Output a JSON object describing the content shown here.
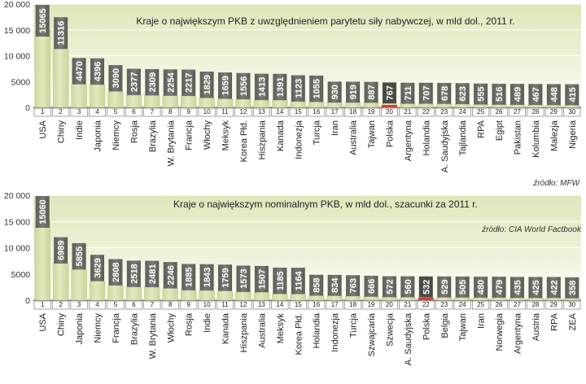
{
  "chart_data": [
    {
      "type": "bar",
      "title": "Kraje o największym PKB z uwzględnieniem parytetu siły nabywczej, w mld dol., 2011 r.",
      "source": "źródło: MFW",
      "ylim": [
        0,
        20000
      ],
      "yticks": [
        "0",
        "5000",
        "10 000",
        "15 000",
        "20 000"
      ],
      "ytick_values": [
        0,
        5000,
        10000,
        15000,
        20000
      ],
      "ranks": [
        "1",
        "2",
        "3",
        "4",
        "5",
        "6",
        "7",
        "8",
        "9",
        "10",
        "11",
        "12",
        "13",
        "14",
        "15",
        "16",
        "17",
        "18",
        "19",
        "20",
        "21",
        "22",
        "23",
        "24",
        "25",
        "26",
        "27",
        "28",
        "29",
        "30"
      ],
      "categories": [
        "USA",
        "Chiny",
        "Indie",
        "Japonia",
        "Niemcy",
        "Rosja",
        "Brazylia",
        "W. Brytania",
        "Francja",
        "Włochy",
        "Meksyk",
        "Korea Płd.",
        "Hiszpania",
        "Kanada",
        "Indonezja",
        "Turcja",
        "Iran",
        "Australia",
        "Tajwan",
        "Polska",
        "Argentyna",
        "Holandia",
        "A. Saudyjska",
        "Tajlandia",
        "RPA",
        "Egipt",
        "Pakistan",
        "Kolumbia",
        "Malezja",
        "Nigeria"
      ],
      "values": [
        15065,
        11316,
        4470,
        4396,
        3090,
        2377,
        2309,
        2254,
        2217,
        1829,
        1659,
        1556,
        1413,
        1391,
        1123,
        1055,
        930,
        919,
        887,
        767,
        711,
        707,
        678,
        623,
        555,
        516,
        489,
        467,
        448,
        415
      ],
      "highlight_index": 19,
      "colors": {
        "bar": "#dfe4b4",
        "bar_top": "#cdd498",
        "label_box": "#6a6a66",
        "highlight": "#d93a3a",
        "background_top": "#dfe6bb",
        "background_bottom": "#fbfcf3"
      }
    },
    {
      "type": "bar",
      "title": "Kraje o największym nominalnym PKB, w mld dol., szacunki za 2011 r.",
      "source": "źródło: CIA World Factbook",
      "ylim": [
        0,
        20000
      ],
      "yticks": [
        "0",
        "5000",
        "10 000",
        "15 000",
        "20 000"
      ],
      "ytick_values": [
        0,
        5000,
        10000,
        15000,
        20000
      ],
      "ranks": [
        "1",
        "2",
        "3",
        "4",
        "5",
        "6",
        "7",
        "8",
        "9",
        "10",
        "11",
        "12",
        "13",
        "14",
        "15",
        "16",
        "17",
        "18",
        "19",
        "20",
        "21",
        "22",
        "23",
        "24",
        "25",
        "26",
        "27",
        "28",
        "29",
        "30"
      ],
      "categories": [
        "USA",
        "Chiny",
        "Japonia",
        "Niemcy",
        "Francja",
        "Brazylia",
        "W. Brytania",
        "Włochy",
        "Rosja",
        "Indie",
        "Kanada",
        "Hiszpania",
        "Australia",
        "Meksyk",
        "Korea Płd.",
        "Holandia",
        "Indonezja",
        "Turcja",
        "Szwajcaria",
        "Szwecja",
        "A. Saudyjska",
        "Polska",
        "Belgia",
        "Tajwan",
        "Iran",
        "Norwegia",
        "Argentyna",
        "Austria",
        "RPA",
        "ZEA"
      ],
      "values": [
        15060,
        6989,
        5855,
        3629,
        2808,
        2518,
        2481,
        2246,
        1885,
        1843,
        1759,
        1573,
        1507,
        1185,
        1164,
        858,
        834,
        763,
        666,
        572,
        560,
        532,
        529,
        505,
        480,
        479,
        435,
        425,
        422,
        358
      ],
      "highlight_index": 21,
      "colors": {
        "bar": "#dfe4b4",
        "bar_top": "#cdd498",
        "label_box": "#6a6a66",
        "highlight": "#d93a3a",
        "background_top": "#dfe6bb",
        "background_bottom": "#fbfcf3"
      }
    }
  ]
}
